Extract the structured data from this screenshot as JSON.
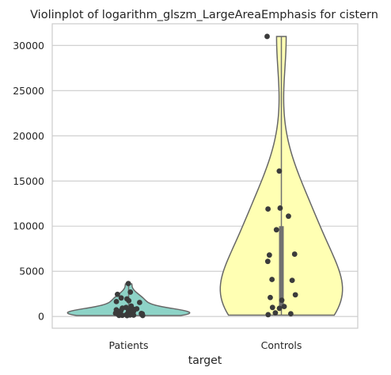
{
  "chart_data": {
    "type": "violin",
    "title": "Violinplot of logarithm_glszm_LargeAreaEmphasis for cistern",
    "xlabel": "target",
    "ylabel": "",
    "categories": [
      "Patients",
      "Controls"
    ],
    "ylim": [
      -1300,
      32400
    ],
    "yticks": [
      0,
      5000,
      10000,
      15000,
      20000,
      25000,
      30000
    ],
    "grid": "horizontal",
    "series": [
      {
        "category": "Patients",
        "color": "#8dd3c7",
        "range": [
          100,
          3600
        ],
        "quartiles": [
          200,
          430,
          850
        ],
        "points": [
          3650,
          2700,
          2450,
          2050,
          1950,
          1750,
          1650,
          1550,
          1150,
          1000,
          920,
          850,
          800,
          740,
          690,
          640,
          590,
          540,
          490,
          440,
          400,
          360,
          330,
          300,
          270,
          240,
          220,
          200,
          180,
          160,
          150,
          130,
          120,
          110,
          100
        ]
      },
      {
        "category": "Controls",
        "color": "#ffffb3",
        "range": [
          150,
          31000
        ],
        "quartiles": [
          1000,
          4000,
          10000
        ],
        "points": [
          31000,
          16100,
          12000,
          11900,
          11100,
          9600,
          6900,
          6800,
          6100,
          4100,
          4000,
          2400,
          2100,
          1800,
          1100,
          1000,
          900,
          400,
          300,
          200
        ]
      }
    ]
  }
}
